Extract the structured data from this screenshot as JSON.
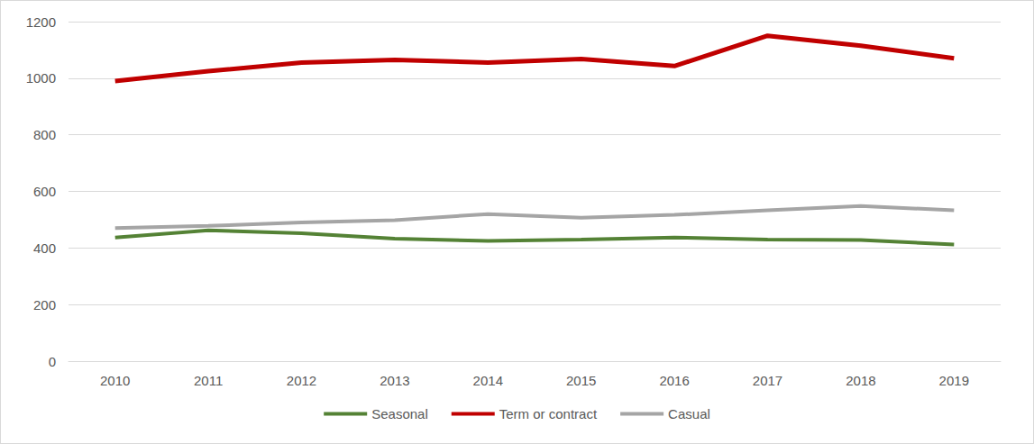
{
  "chart_data": {
    "type": "line",
    "categories": [
      "2010",
      "2011",
      "2012",
      "2013",
      "2014",
      "2015",
      "2016",
      "2017",
      "2018",
      "2019"
    ],
    "series": [
      {
        "name": "Seasonal",
        "color": "#548235",
        "values": [
          437,
          462,
          452,
          433,
          425,
          430,
          437,
          430,
          428,
          412
        ]
      },
      {
        "name": "Term or contract",
        "color": "#c00000",
        "values": [
          990,
          1025,
          1055,
          1065,
          1055,
          1068,
          1043,
          1150,
          1115,
          1070
        ]
      },
      {
        "name": "Casual",
        "color": "#a5a5a5",
        "values": [
          470,
          478,
          490,
          498,
          520,
          507,
          517,
          533,
          548,
          533
        ]
      }
    ],
    "ylim": [
      0,
      1200
    ],
    "yticks": [
      0,
      200,
      400,
      600,
      800,
      1000,
      1200
    ],
    "grid": true,
    "legend": "bottom",
    "marker": "none"
  }
}
